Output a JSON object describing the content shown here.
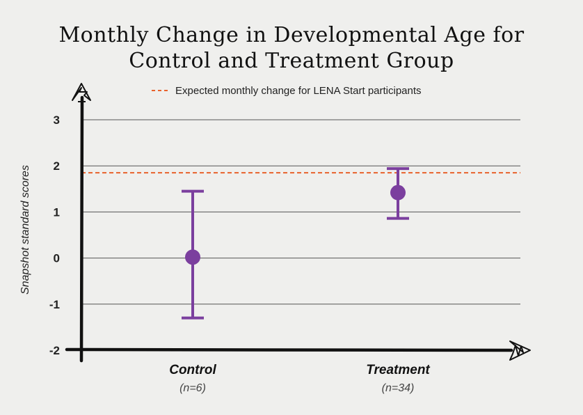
{
  "chart_data": {
    "type": "scatter",
    "title_line1": "Monthly Change in Developmental Age for",
    "title_line2": "Control and Treatment Group",
    "ylabel": "Snapshot standard scores",
    "ylim": [
      -2,
      3
    ],
    "yticks": [
      "3",
      "2",
      "1",
      "0",
      "-1",
      "-2"
    ],
    "grid": true,
    "reference_line": {
      "label": "Expected monthly change for LENA Start participants",
      "value": 1.85,
      "color": "#e8622c"
    },
    "categories": [
      {
        "name": "Control",
        "n_label": "(n=6)",
        "mean": 0.02,
        "ci_low": -1.3,
        "ci_high": 1.45
      },
      {
        "name": "Treatment",
        "n_label": "(n=34)",
        "mean": 1.42,
        "ci_low": 0.86,
        "ci_high": 1.94
      }
    ],
    "point_color": "#7b3f9e",
    "legend_position": "top"
  }
}
